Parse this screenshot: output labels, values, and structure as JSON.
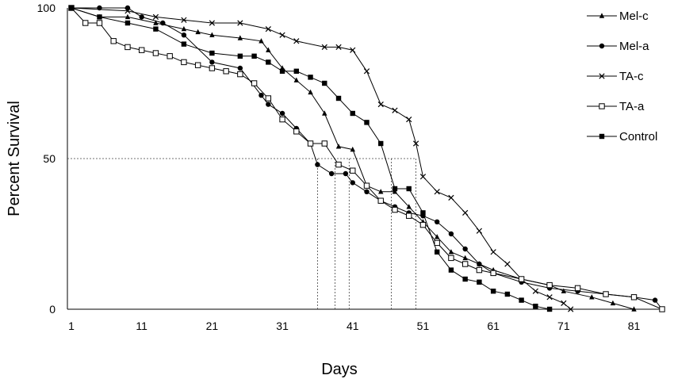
{
  "chart_data": {
    "type": "line",
    "title": "",
    "xlabel": "Days",
    "ylabel": "Percent Survival",
    "xlim": [
      1,
      85
    ],
    "ylim": [
      0,
      100
    ],
    "x_ticks": [
      1,
      11,
      21,
      31,
      41,
      51,
      61,
      71,
      81
    ],
    "x_tick_labels": [
      "1",
      "11",
      "21",
      "31",
      "41",
      "51",
      "61",
      "71",
      "81"
    ],
    "y_ticks": [
      0,
      50,
      100
    ],
    "y_tick_labels": [
      "0",
      "50",
      "100"
    ],
    "grid": false,
    "legend_position": "right",
    "reference_line_y": 50,
    "median_days": [
      36,
      38.5,
      40.5,
      46.5,
      50
    ],
    "series": [
      {
        "name": "Mel-c",
        "marker": "triangle",
        "x": [
          1,
          5,
          9,
          13,
          17,
          19,
          21,
          25,
          28,
          29,
          31,
          33,
          35,
          37,
          39,
          41,
          43,
          45,
          47,
          49,
          51,
          53,
          55,
          57,
          59,
          61,
          65,
          69,
          71,
          75,
          78,
          81
        ],
        "y": [
          100,
          97,
          97,
          95,
          93,
          92,
          91,
          90,
          89,
          86,
          80,
          76,
          72,
          65,
          54,
          53,
          41,
          39,
          39,
          34,
          29,
          24,
          19,
          17,
          15,
          13,
          10,
          8,
          6,
          4,
          2,
          0
        ]
      },
      {
        "name": "Mel-a",
        "marker": "circle",
        "x": [
          1,
          5,
          9,
          11,
          14,
          17,
          21,
          25,
          28,
          29,
          31,
          33,
          35,
          36,
          38,
          40,
          41,
          43,
          45,
          47,
          49,
          51,
          53,
          55,
          57,
          59,
          61,
          65,
          69,
          73,
          77,
          81,
          84,
          85
        ],
        "y": [
          100,
          100,
          100,
          97,
          95,
          91,
          82,
          80,
          71,
          68,
          65,
          60,
          55,
          48,
          45,
          45,
          42,
          39,
          36,
          34,
          32,
          31,
          29,
          25,
          20,
          15,
          12,
          9,
          7,
          6,
          5,
          4,
          3,
          0
        ]
      },
      {
        "name": "TA-c",
        "marker": "x",
        "x": [
          1,
          9,
          13,
          17,
          21,
          25,
          29,
          31,
          33,
          37,
          39,
          41,
          43,
          45,
          47,
          49,
          50,
          51,
          53,
          55,
          57,
          59,
          61,
          63,
          65,
          67,
          69,
          71,
          72
        ],
        "y": [
          100,
          99,
          97,
          96,
          95,
          95,
          93,
          91,
          89,
          87,
          87,
          86,
          79,
          68,
          66,
          63,
          55,
          44,
          39,
          37,
          32,
          26,
          19,
          15,
          10,
          6,
          4,
          2,
          0
        ]
      },
      {
        "name": "TA-a",
        "marker": "open-square",
        "x": [
          1,
          3,
          5,
          7,
          9,
          11,
          13,
          15,
          17,
          19,
          21,
          23,
          25,
          27,
          29,
          31,
          33,
          35,
          37,
          39,
          41,
          43,
          45,
          47,
          49,
          51,
          53,
          55,
          57,
          59,
          61,
          65,
          69,
          73,
          77,
          81,
          85
        ],
        "y": [
          100,
          95,
          95,
          89,
          87,
          86,
          85,
          84,
          82,
          81,
          80,
          79,
          78,
          75,
          70,
          63,
          59,
          55,
          55,
          48,
          46,
          41,
          36,
          33,
          31,
          28,
          22,
          17,
          15,
          13,
          12,
          10,
          8,
          7,
          5,
          4,
          0
        ]
      },
      {
        "name": "Control",
        "marker": "filled-square",
        "x": [
          1,
          5,
          9,
          13,
          17,
          21,
          25,
          27,
          29,
          31,
          33,
          35,
          37,
          39,
          41,
          43,
          45,
          47,
          49,
          51,
          53,
          55,
          57,
          59,
          61,
          63,
          65,
          67,
          69
        ],
        "y": [
          100,
          97,
          95,
          93,
          88,
          85,
          84,
          84,
          82,
          79,
          79,
          77,
          75,
          70,
          65,
          62,
          55,
          40,
          40,
          32,
          19,
          13,
          10,
          9,
          6,
          5,
          3,
          1,
          0
        ]
      }
    ]
  }
}
